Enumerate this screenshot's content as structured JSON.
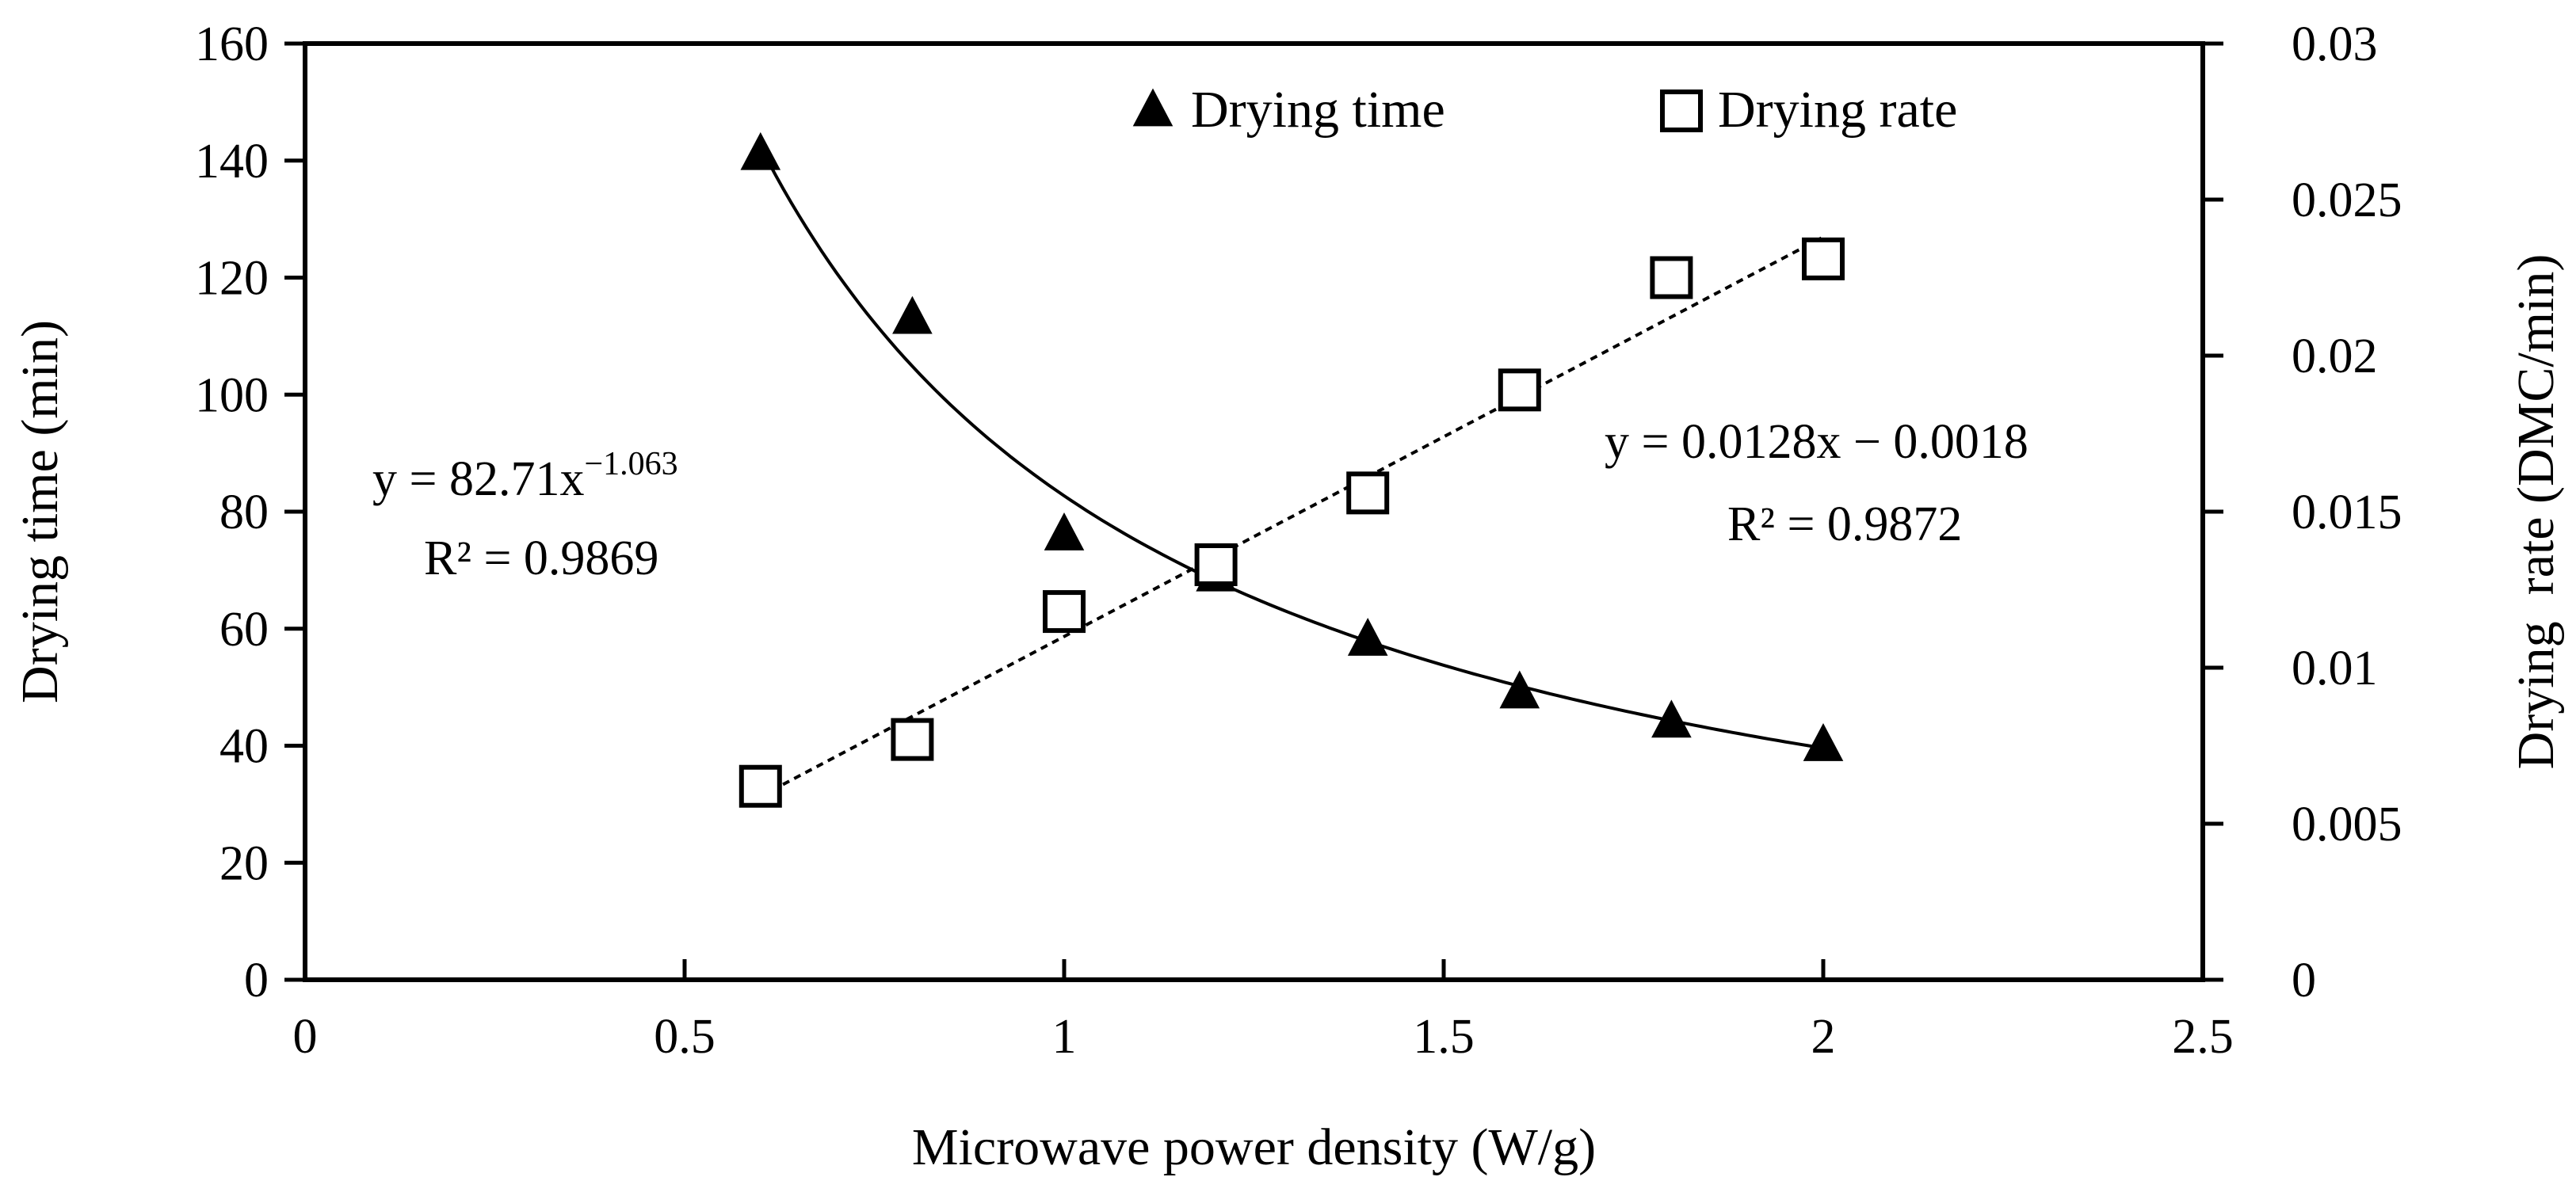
{
  "chart_data": {
    "type": "scatter",
    "x_axis": {
      "label": "Microwave power density (W/g)",
      "range": [
        0,
        2.5
      ],
      "ticks": [
        0,
        0.5,
        1,
        1.5,
        2,
        2.5
      ],
      "tick_labels": [
        "0",
        "0.5",
        "1",
        "1.5",
        "2",
        "2.5"
      ]
    },
    "y_axis_left": {
      "label": "Drying time (min)",
      "range": [
        0,
        160
      ],
      "ticks": [
        0,
        20,
        40,
        60,
        80,
        100,
        120,
        140,
        160
      ],
      "tick_labels": [
        "0",
        "20",
        "40",
        "60",
        "80",
        "100",
        "120",
        "140",
        "160"
      ]
    },
    "y_axis_right": {
      "label": "Drying  rate (DMC/min)",
      "range": [
        0,
        0.03
      ],
      "ticks": [
        0,
        0.005,
        0.01,
        0.015,
        0.02,
        0.025,
        0.03
      ],
      "tick_labels": [
        "0",
        "0.005",
        "0.01",
        "0.015",
        "0.02",
        "0.025",
        "0.03"
      ]
    },
    "grid": false,
    "legend_position": "top-right",
    "series": [
      {
        "name": "Drying time",
        "axis": "left",
        "marker": "filled-triangle",
        "x": [
          0.6,
          0.8,
          1.0,
          1.2,
          1.4,
          1.6,
          1.8,
          2.0
        ],
        "y": [
          141,
          113,
          76,
          69,
          58,
          49,
          44,
          40
        ],
        "fit": {
          "type": "power",
          "a": 82.71,
          "b": -1.063,
          "x_range": [
            0.6,
            2.0
          ],
          "style": "solid"
        }
      },
      {
        "name": "Drying rate",
        "axis": "right",
        "marker": "open-square",
        "x": [
          0.6,
          0.8,
          1.0,
          1.2,
          1.4,
          1.6,
          1.8,
          2.0
        ],
        "y": [
          0.0062,
          0.0077,
          0.0118,
          0.0133,
          0.0156,
          0.0189,
          0.0225,
          0.0231
        ],
        "fit": {
          "type": "linear",
          "slope": 0.0128,
          "intercept": -0.0018,
          "x_range": [
            0.6,
            2.0
          ],
          "style": "dotted"
        }
      }
    ],
    "annotations": {
      "power_fit": {
        "eq_prefix": "y = 82.71x",
        "eq_exponent": "−1.063",
        "r2": "R² = 0.9869"
      },
      "linear_fit": {
        "equation": "y = 0.0128x − 0.0018",
        "r2": "R² = 0.9872"
      }
    }
  }
}
